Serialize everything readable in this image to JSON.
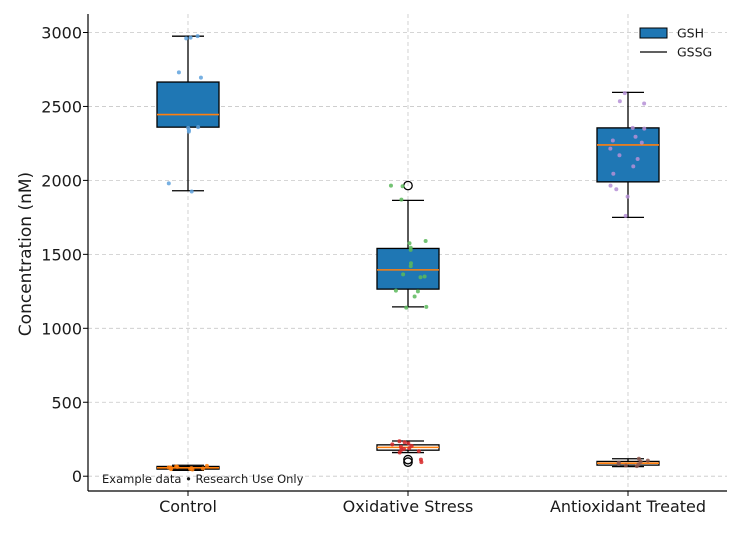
{
  "chart_data": {
    "type": "box",
    "title": "",
    "xlabel": "",
    "ylabel": "Concentration (nM)",
    "ylim": [
      -100,
      3125
    ],
    "yticks": [
      0,
      500,
      1000,
      1500,
      2000,
      2500,
      3000
    ],
    "grid": true,
    "legend_position": "top-right",
    "annotation": "Example data • Research Use Only",
    "categories": [
      "Control",
      "Oxidative Stress",
      "Antioxidant Treated"
    ],
    "legend": [
      {
        "name": "GSH",
        "style": "box",
        "color": "#1f77b4"
      },
      {
        "name": "GSSG",
        "style": "line",
        "color": "#000000"
      }
    ],
    "colors": {
      "box_fill": "#1f77b4",
      "median": "#ff7f0e",
      "whisker": "#000000",
      "grid": "#c8c8c8"
    },
    "series": [
      {
        "name": "GSH",
        "boxes": [
          {
            "category": "Control",
            "whisker_low": 1930,
            "q1": 2360,
            "median": 2445,
            "q3": 2665,
            "whisker_high": 2975,
            "fliers": []
          },
          {
            "category": "Oxidative Stress",
            "whisker_low": 1145,
            "q1": 1265,
            "median": 1395,
            "q3": 1540,
            "whisker_high": 1865,
            "fliers": [
              1965
            ]
          },
          {
            "category": "Antioxidant Treated",
            "whisker_low": 1750,
            "q1": 1990,
            "median": 2240,
            "q3": 2355,
            "whisker_high": 2595,
            "fliers": []
          }
        ],
        "points": [
          {
            "category": "Control",
            "color": "#5fa2dd",
            "values": [
              2975,
              2965,
              2960,
              2730,
              2695,
              2360,
              2355,
              2340,
              2330,
              1980,
              1925
            ]
          },
          {
            "category": "Oxidative Stress",
            "color": "#5cb85c",
            "values": [
              1965,
              1960,
              1870,
              1590,
              1575,
              1545,
              1530,
              1440,
              1420,
              1365,
              1350,
              1345,
              1255,
              1250,
              1215,
              1145,
              1140
            ]
          },
          {
            "category": "Antioxidant Treated",
            "color": "#b58fd6",
            "values": [
              2590,
              2535,
              2520,
              2355,
              2350,
              2295,
              2270,
              2255,
              2215,
              2170,
              2145,
              2095,
              2045,
              1965,
              1940,
              1890,
              1760
            ]
          }
        ]
      },
      {
        "name": "GSSG",
        "boxes": [
          {
            "category": "Control",
            "whisker_low": 40,
            "q1": 48,
            "median": 57,
            "q3": 66,
            "whisker_high": 74,
            "fliers": []
          },
          {
            "category": "Oxidative Stress",
            "whisker_low": 160,
            "q1": 176,
            "median": 195,
            "q3": 212,
            "whisker_high": 238,
            "fliers": [
              112,
              95
            ]
          },
          {
            "category": "Antioxidant Treated",
            "whisker_low": 65,
            "q1": 75,
            "median": 88,
            "q3": 100,
            "whisker_high": 118,
            "fliers": []
          }
        ],
        "points": [
          {
            "category": "Control",
            "color": "#ff7f0e",
            "values": [
              70,
              66,
              63,
              60,
              58,
              55,
              52,
              50,
              48,
              45
            ]
          },
          {
            "category": "Oxidative Stress",
            "color": "#d62728",
            "values": [
              236,
              230,
              222,
              215,
              205,
              198,
              190,
              185,
              178,
              170,
              160,
              112,
              95
            ]
          },
          {
            "category": "Antioxidant Treated",
            "color": "#8c564b",
            "values": [
              118,
              105,
              98,
              92,
              85,
              80,
              72,
              68
            ]
          }
        ]
      }
    ]
  }
}
